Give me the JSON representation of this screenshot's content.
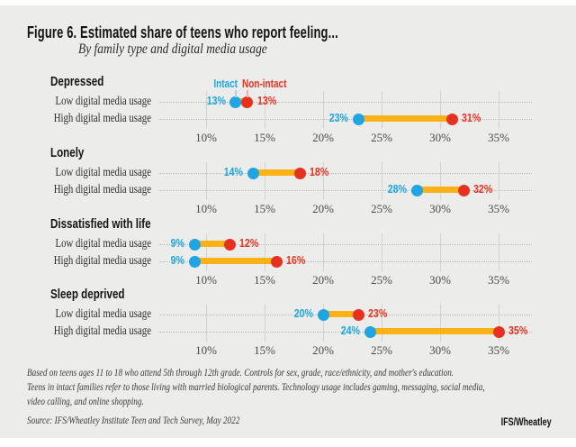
{
  "title": "Figure 6. Estimated share of teens who report feeling...",
  "subtitle": "By family type and digital media usage",
  "legend": {
    "intact": "Intact",
    "non_intact": "Non-intact"
  },
  "colors": {
    "background": "#ECECEA",
    "intact_blue": "#1EA5E2",
    "non_intact_red": "#E73120",
    "connector_orange": "#FCB216"
  },
  "chart_data": {
    "type": "dumbbell",
    "title": "Estimated share of teens who report feeling...",
    "subtitle": "By family type and digital media usage",
    "series_names": [
      "Intact",
      "Non-intact"
    ],
    "legend_position": "top of first section, above Depressed low-usage dots",
    "grid": true,
    "axis": {
      "unit": "%",
      "min": 10,
      "max": 35,
      "tick_values": [
        10,
        15,
        20,
        25,
        30,
        35
      ],
      "tick_labels": [
        "10%",
        "15%",
        "20%",
        "25%",
        "30%",
        "35%"
      ]
    },
    "sections": [
      {
        "label": "Depressed",
        "show_legend": true,
        "rows": [
          {
            "label": "Low digital media usage",
            "intact": 13,
            "non_intact": 13
          },
          {
            "label": "High digital media usage",
            "intact": 23,
            "non_intact": 31
          }
        ]
      },
      {
        "label": "Lonely",
        "show_legend": false,
        "rows": [
          {
            "label": "Low digital media usage",
            "intact": 14,
            "non_intact": 18
          },
          {
            "label": "High digital media usage",
            "intact": 28,
            "non_intact": 32
          }
        ]
      },
      {
        "label": "Dissatisfied with life",
        "show_legend": false,
        "rows": [
          {
            "label": "Low digital media usage",
            "intact": 9,
            "non_intact": 12
          },
          {
            "label": "High digital media usage",
            "intact": 9,
            "non_intact": 16
          }
        ]
      },
      {
        "label": "Sleep deprived",
        "show_legend": false,
        "rows": [
          {
            "label": "Low digital media usage",
            "intact": 20,
            "non_intact": 23
          },
          {
            "label": "High digital media usage",
            "intact": 24,
            "non_intact": 35
          }
        ]
      }
    ]
  },
  "footnotes": [
    "Based on teens ages 11 to 18 who attend 5th through 12th grade. Controls for sex, grade, race/ethnicity, and mother's education.",
    "Teens in intact families refer to those living with married biological parents. Technology usage includes gaming, messaging, social media,",
    "video calling, and online shopping."
  ],
  "source": "Source: IFS/Wheatley Institute Teen and Tech Survey, May 2022",
  "logo": "IFS/Wheatley"
}
